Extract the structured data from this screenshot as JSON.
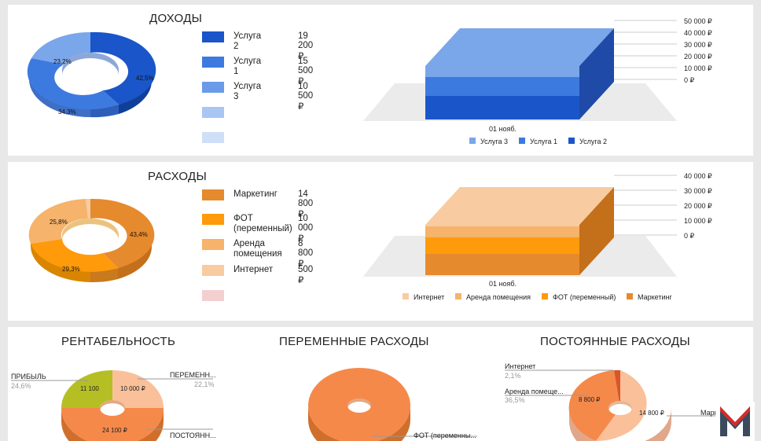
{
  "income": {
    "title": "ДОХОДЫ",
    "legend": [
      {
        "name": "Услуга 2",
        "value": "19 200 ₽",
        "color": "#1a56c9"
      },
      {
        "name": "Услуга 1",
        "value": "15 500 ₽",
        "color": "#3d7ae0"
      },
      {
        "name": "Услуга 3",
        "value": "10 500 ₽",
        "color": "#6a9be8"
      },
      {
        "name": "",
        "value": "",
        "color": "#a9c6f2"
      },
      {
        "name": "",
        "value": "",
        "color": "#cfdff7"
      }
    ],
    "pie_labels": [
      "42,5%",
      "34,3%",
      "23,2%"
    ],
    "bar": {
      "category": "01 нояб.",
      "ticks": [
        "50 000 ₽",
        "40 000 ₽",
        "30 000 ₽",
        "20 000 ₽",
        "10 000 ₽",
        "0 ₽"
      ],
      "legend": [
        "Услуга 3",
        "Услуга 1",
        "Услуга 2"
      ]
    },
    "colors": [
      "#1a56c9",
      "#3d7ae0",
      "#7aa6ea"
    ]
  },
  "expenses": {
    "title": "РАСХОДЫ",
    "legend": [
      {
        "name": "Маркетинг",
        "value": "14 800 ₽",
        "color": "#e68a2e"
      },
      {
        "name": "ФОТ (переменный)",
        "value": "10 000 ₽",
        "color": "#ff9a0a"
      },
      {
        "name": "Аренда помещения",
        "value": "8 800 ₽",
        "color": "#f5b36b"
      },
      {
        "name": "Интернет",
        "value": "500 ₽",
        "color": "#f9cba0"
      },
      {
        "name": "",
        "value": "",
        "color": "#f3cfcf"
      }
    ],
    "pie_labels": [
      "43,4%",
      "29,3%",
      "25,8%"
    ],
    "bar": {
      "category": "01 нояб.",
      "ticks": [
        "40 000 ₽",
        "30 000 ₽",
        "20 000 ₽",
        "10 000 ₽",
        "0 ₽"
      ],
      "legend": [
        "Интернет",
        "Аренда помещения",
        "ФОТ (переменный)",
        "Маркетинг"
      ]
    }
  },
  "profitability": {
    "title": "РЕНТАБЕЛЬНОСТЬ",
    "callouts": [
      {
        "name": "ПРИБЫЛЬ",
        "pct": "24,6%"
      },
      {
        "name": "ПЕРЕМЕНН...",
        "pct": "22,1%"
      },
      {
        "name": "ПОСТОЯНН...",
        "pct": ""
      }
    ],
    "values": [
      "11 100",
      "10 000 ₽",
      "24 100 ₽"
    ]
  },
  "variable": {
    "title": "ПЕРЕМЕННЫЕ РАСХОДЫ",
    "callout": "ФОТ (переменны..."
  },
  "fixed": {
    "title": "ПОСТОЯННЫЕ РАСХОДЫ",
    "callouts": [
      {
        "name": "Интернет",
        "pct": "2,1%"
      },
      {
        "name": "Аренда помеще...",
        "pct": "36,5%"
      },
      {
        "name": "Маркетинг",
        "pct": ""
      }
    ],
    "values": [
      "8 800 ₽",
      "14 800 ₽"
    ]
  },
  "logo": {
    "letter": "M"
  },
  "chart_data": [
    {
      "type": "pie",
      "title": "ДОХОДЫ",
      "categories": [
        "Услуга 2",
        "Услуга 1",
        "Услуга 3"
      ],
      "values": [
        19200,
        15500,
        10500
      ],
      "percent": [
        42.5,
        34.3,
        23.2
      ]
    },
    {
      "type": "bar",
      "categories": [
        "01 нояб."
      ],
      "stacked": true,
      "series": [
        {
          "name": "Услуга 2",
          "values": [
            19200
          ]
        },
        {
          "name": "Услуга 1",
          "values": [
            15500
          ]
        },
        {
          "name": "Услуга 3",
          "values": [
            10500
          ]
        }
      ],
      "ylim": [
        0,
        50000
      ],
      "legend": "bottom"
    },
    {
      "type": "pie",
      "title": "РАСХОДЫ",
      "categories": [
        "Маркетинг",
        "ФОТ (переменный)",
        "Аренда помещения",
        "Интернет"
      ],
      "values": [
        14800,
        10000,
        8800,
        500
      ],
      "percent": [
        43.4,
        29.3,
        25.8,
        1.5
      ]
    },
    {
      "type": "bar",
      "categories": [
        "01 нояб."
      ],
      "stacked": true,
      "series": [
        {
          "name": "Маркетинг",
          "values": [
            14800
          ]
        },
        {
          "name": "ФОТ (переменный)",
          "values": [
            10000
          ]
        },
        {
          "name": "Аренда помещения",
          "values": [
            8800
          ]
        },
        {
          "name": "Интернет",
          "values": [
            500
          ]
        }
      ],
      "ylim": [
        0,
        40000
      ],
      "legend": "bottom"
    },
    {
      "type": "pie",
      "title": "РЕНТАБЕЛЬНОСТЬ",
      "categories": [
        "ПРИБЫЛЬ",
        "ПЕРЕМЕНН...",
        "ПОСТОЯНН..."
      ],
      "values": [
        11100,
        10000,
        24100
      ],
      "percent": [
        24.6,
        22.1,
        53.3
      ]
    },
    {
      "type": "pie",
      "title": "ПЕРЕМЕННЫЕ РАСХОДЫ",
      "categories": [
        "ФОТ (переменны..."
      ],
      "values": [
        10000
      ],
      "percent": [
        100
      ]
    },
    {
      "type": "pie",
      "title": "ПОСТОЯННЫЕ РАСХОДЫ",
      "categories": [
        "Маркетинг",
        "Аренда помеще...",
        "Интернет"
      ],
      "values": [
        14800,
        8800,
        500
      ],
      "percent": [
        61.4,
        36.5,
        2.1
      ]
    }
  ]
}
